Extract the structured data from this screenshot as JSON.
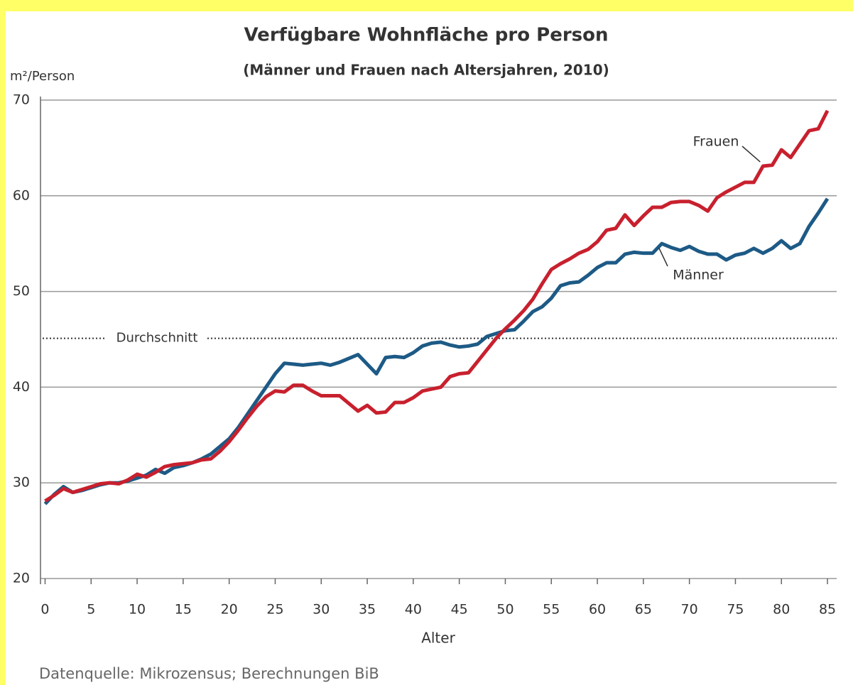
{
  "chart_data": {
    "type": "line",
    "title": "Verfügbare Wohnfläche pro Person",
    "subtitle": "(Männer und Frauen nach Altersjahren, 2010)",
    "y_label": "m²/Person",
    "x_label": "Alter",
    "source": "Datenquelle: Mikrozensus; Berechnungen BiB",
    "x": [
      0,
      1,
      2,
      3,
      4,
      5,
      6,
      7,
      8,
      9,
      10,
      11,
      12,
      13,
      14,
      15,
      16,
      17,
      18,
      19,
      20,
      21,
      22,
      23,
      24,
      25,
      26,
      27,
      28,
      29,
      30,
      31,
      32,
      33,
      34,
      35,
      36,
      37,
      38,
      39,
      40,
      41,
      42,
      43,
      44,
      45,
      46,
      47,
      48,
      49,
      50,
      51,
      52,
      53,
      54,
      55,
      56,
      57,
      58,
      59,
      60,
      61,
      62,
      63,
      64,
      65,
      66,
      67,
      68,
      69,
      70,
      71,
      72,
      73,
      74,
      75,
      76,
      77,
      78,
      79,
      80,
      81,
      82,
      83,
      84,
      85
    ],
    "series": [
      {
        "name": "Männer",
        "color": "#1d5a86",
        "values": [
          27.8,
          28.8,
          29.6,
          29.0,
          29.2,
          29.5,
          29.8,
          30.0,
          30.0,
          30.2,
          30.5,
          30.8,
          31.4,
          31.0,
          31.6,
          31.8,
          32.1,
          32.5,
          33.0,
          33.8,
          34.6,
          35.8,
          37.2,
          38.6,
          40.0,
          41.4,
          42.5,
          42.4,
          42.3,
          42.4,
          42.5,
          42.3,
          42.6,
          43.0,
          43.4,
          42.4,
          41.4,
          43.1,
          43.2,
          43.1,
          43.6,
          44.3,
          44.6,
          44.7,
          44.4,
          44.2,
          44.3,
          44.5,
          45.3,
          45.6,
          45.9,
          46.0,
          46.9,
          47.9,
          48.4,
          49.3,
          50.6,
          50.9,
          51.0,
          51.7,
          52.5,
          53.0,
          53.0,
          53.9,
          54.1,
          54.0,
          54.0,
          55.0,
          54.6,
          54.3,
          54.7,
          54.2,
          53.9,
          53.9,
          53.3,
          53.8,
          54.0,
          54.5,
          54.0,
          54.5,
          55.3,
          54.5,
          55.0,
          56.8,
          58.2,
          59.7
        ]
      },
      {
        "name": "Frauen",
        "color": "#c8202e",
        "values": [
          28.1,
          28.7,
          29.4,
          29.0,
          29.3,
          29.6,
          29.9,
          30.0,
          29.9,
          30.3,
          30.9,
          30.6,
          31.1,
          31.7,
          31.9,
          32.0,
          32.1,
          32.4,
          32.5,
          33.3,
          34.3,
          35.5,
          36.8,
          38.0,
          39.0,
          39.6,
          39.5,
          40.2,
          40.2,
          39.6,
          39.1,
          39.1,
          39.1,
          38.3,
          37.5,
          38.1,
          37.3,
          37.4,
          38.4,
          38.4,
          38.9,
          39.6,
          39.8,
          40.0,
          41.1,
          41.4,
          41.5,
          42.7,
          43.9,
          45.1,
          46.1,
          47.0,
          48.0,
          49.2,
          50.8,
          52.3,
          52.9,
          53.4,
          54.0,
          54.4,
          55.2,
          56.4,
          56.6,
          58.0,
          56.9,
          57.9,
          58.8,
          58.8,
          59.3,
          59.4,
          59.4,
          59.0,
          58.4,
          59.8,
          60.4,
          60.9,
          61.4,
          61.4,
          63.1,
          63.2,
          64.8,
          64.0,
          65.4,
          66.8,
          67.0,
          68.9
        ]
      }
    ],
    "reference_line": {
      "label": "Durchschnitt",
      "value": 45.1
    },
    "xlim": [
      -0.5,
      86
    ],
    "xticks": [
      0,
      5,
      10,
      15,
      20,
      25,
      30,
      35,
      40,
      45,
      50,
      55,
      60,
      65,
      70,
      75,
      80,
      85
    ],
    "ylim": [
      20,
      70
    ],
    "yticks": [
      20,
      30,
      40,
      50,
      60,
      70
    ],
    "grid": true
  }
}
